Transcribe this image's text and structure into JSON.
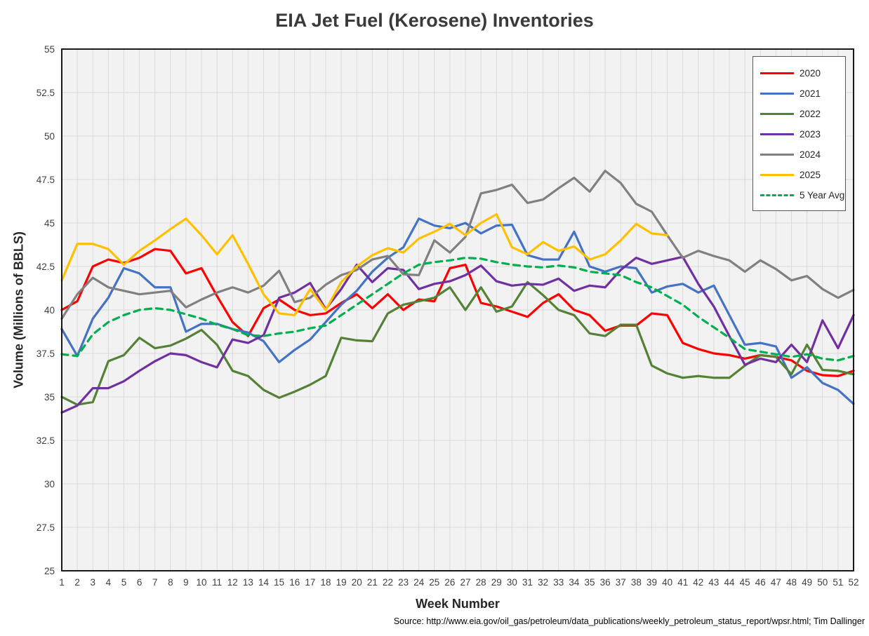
{
  "source": "Source: http://www.eia.gov/oil_gas/petroleum/data_publications/weekly_petroleum_status_report/wpsr.html; Tim Dallinger",
  "colors": {
    "plot_bg": "#f2f2f2",
    "gridline": "#d9d9d9",
    "plot_border": "#000000",
    "tick_text": "#404040",
    "legend_border": "#595959"
  },
  "chart_data": {
    "type": "line",
    "title": "EIA Jet Fuel (Kerosene) Inventories",
    "xlabel": "Week Number",
    "ylabel": "Volume (Millions of BBLS)",
    "xlim": [
      1,
      52
    ],
    "ylim": [
      25,
      55
    ],
    "grid": true,
    "legend_position": "top-right",
    "xticks": [
      1,
      2,
      3,
      4,
      5,
      6,
      7,
      8,
      9,
      10,
      11,
      12,
      13,
      14,
      15,
      16,
      17,
      18,
      19,
      20,
      21,
      22,
      23,
      24,
      25,
      26,
      27,
      28,
      29,
      30,
      31,
      32,
      33,
      34,
      35,
      36,
      37,
      38,
      39,
      40,
      41,
      42,
      43,
      44,
      45,
      46,
      47,
      48,
      49,
      50,
      51,
      52
    ],
    "yticks": [
      25,
      27.5,
      30,
      32.5,
      35,
      37.5,
      40,
      42.5,
      45,
      47.5,
      50,
      52.5,
      55
    ],
    "series": [
      {
        "name": "2020",
        "color": "#FF0000",
        "dash": false,
        "values": [
          40.0,
          40.5,
          42.5,
          42.9,
          42.7,
          43.0,
          43.5,
          43.4,
          42.1,
          42.4,
          40.8,
          39.3,
          38.5,
          40.1,
          40.6,
          40.0,
          39.7,
          39.8,
          40.4,
          40.9,
          40.1,
          40.9,
          40.0,
          40.6,
          40.5,
          42.4,
          42.6,
          40.4,
          40.2,
          39.9,
          39.6,
          40.4,
          40.9,
          40.0,
          39.7,
          38.8,
          39.1,
          39.1,
          39.8,
          39.7,
          38.1,
          37.75,
          37.5,
          37.4,
          37.2,
          37.4,
          37.3,
          37.1,
          36.5,
          36.25,
          36.2,
          36.5
        ]
      },
      {
        "name": "2021",
        "color": "#4472C4",
        "dash": false,
        "values": [
          38.9,
          37.35,
          39.5,
          40.7,
          42.4,
          42.1,
          41.3,
          41.3,
          38.75,
          39.2,
          39.2,
          38.9,
          38.7,
          38.2,
          37.0,
          37.7,
          38.3,
          39.3,
          40.3,
          41.1,
          42.2,
          43.0,
          43.6,
          45.25,
          44.85,
          44.7,
          45.0,
          44.4,
          44.85,
          44.9,
          43.15,
          42.9,
          42.9,
          44.5,
          42.5,
          42.2,
          42.5,
          42.4,
          41.0,
          41.35,
          41.5,
          41.0,
          41.4,
          39.7,
          38.0,
          38.1,
          37.9,
          36.1,
          36.7,
          35.8,
          35.4,
          34.6
        ]
      },
      {
        "name": "2022",
        "color": "#548235",
        "dash": false,
        "values": [
          35.0,
          34.55,
          34.7,
          37.05,
          37.4,
          38.4,
          37.8,
          37.95,
          38.35,
          38.85,
          38.0,
          36.5,
          36.2,
          35.4,
          34.95,
          35.3,
          35.7,
          36.2,
          38.4,
          38.25,
          38.2,
          39.8,
          40.3,
          40.5,
          40.7,
          41.3,
          40.0,
          41.3,
          39.9,
          40.2,
          41.6,
          40.85,
          40.0,
          39.7,
          38.65,
          38.5,
          39.15,
          39.15,
          36.8,
          36.35,
          36.1,
          36.2,
          36.1,
          36.1,
          36.8,
          37.4,
          37.3,
          36.3,
          38.0,
          36.55,
          36.5,
          36.3
        ]
      },
      {
        "name": "2023",
        "color": "#7030A0",
        "dash": false,
        "values": [
          34.1,
          34.5,
          35.5,
          35.5,
          35.9,
          36.5,
          37.05,
          37.5,
          37.4,
          37.0,
          36.7,
          38.3,
          38.1,
          38.55,
          40.7,
          41.0,
          41.55,
          40.05,
          41.2,
          42.6,
          41.6,
          42.4,
          42.3,
          41.2,
          41.5,
          41.65,
          42.0,
          42.55,
          41.65,
          41.4,
          41.5,
          41.45,
          41.8,
          41.1,
          41.4,
          41.3,
          42.3,
          43.0,
          42.65,
          42.85,
          43.05,
          41.5,
          40.2,
          38.5,
          36.85,
          37.2,
          37.0,
          38.0,
          37.0,
          39.4,
          37.8,
          39.7
        ]
      },
      {
        "name": "2024",
        "color": "#808080",
        "dash": false,
        "values": [
          39.5,
          40.9,
          41.85,
          41.3,
          41.1,
          40.9,
          41.0,
          41.1,
          40.15,
          40.6,
          41.0,
          41.3,
          41.0,
          41.4,
          42.25,
          40.45,
          40.7,
          41.45,
          42.0,
          42.3,
          42.9,
          43.1,
          42.05,
          42.0,
          44.0,
          43.3,
          44.2,
          46.7,
          46.9,
          47.2,
          46.15,
          46.35,
          47.0,
          47.6,
          46.8,
          48.0,
          47.3,
          46.1,
          45.65,
          44.3,
          43.0,
          43.4,
          43.1,
          42.85,
          42.2,
          42.85,
          42.35,
          41.7,
          41.95,
          41.2,
          40.7,
          41.15
        ]
      },
      {
        "name": "2025",
        "color": "#FFC000",
        "dash": false,
        "values": [
          41.7,
          43.8,
          43.8,
          43.5,
          42.6,
          43.4,
          44.0,
          44.65,
          45.25,
          44.3,
          43.2,
          44.3,
          42.65,
          40.9,
          39.8,
          39.7,
          41.2,
          40.0,
          41.6,
          42.5,
          43.15,
          43.55,
          43.3,
          44.1,
          44.5,
          44.95,
          44.3,
          45.0,
          45.5,
          43.6,
          43.2,
          43.9,
          43.4,
          43.65,
          42.9,
          43.2,
          44.0,
          44.95,
          44.4,
          44.3
        ]
      },
      {
        "name": "5 Year Avg",
        "color": "#00B050",
        "dash": true,
        "values": [
          37.45,
          37.35,
          38.6,
          39.3,
          39.7,
          40.0,
          40.1,
          40.0,
          39.75,
          39.5,
          39.15,
          38.9,
          38.55,
          38.5,
          38.65,
          38.75,
          38.95,
          39.1,
          39.7,
          40.3,
          40.9,
          41.5,
          42.1,
          42.6,
          42.75,
          42.85,
          43.0,
          42.95,
          42.75,
          42.6,
          42.5,
          42.45,
          42.55,
          42.45,
          42.2,
          42.1,
          42.0,
          41.6,
          41.3,
          40.8,
          40.3,
          39.6,
          39.0,
          38.4,
          37.75,
          37.6,
          37.45,
          37.3,
          37.45,
          37.2,
          37.1,
          37.35
        ]
      }
    ]
  }
}
